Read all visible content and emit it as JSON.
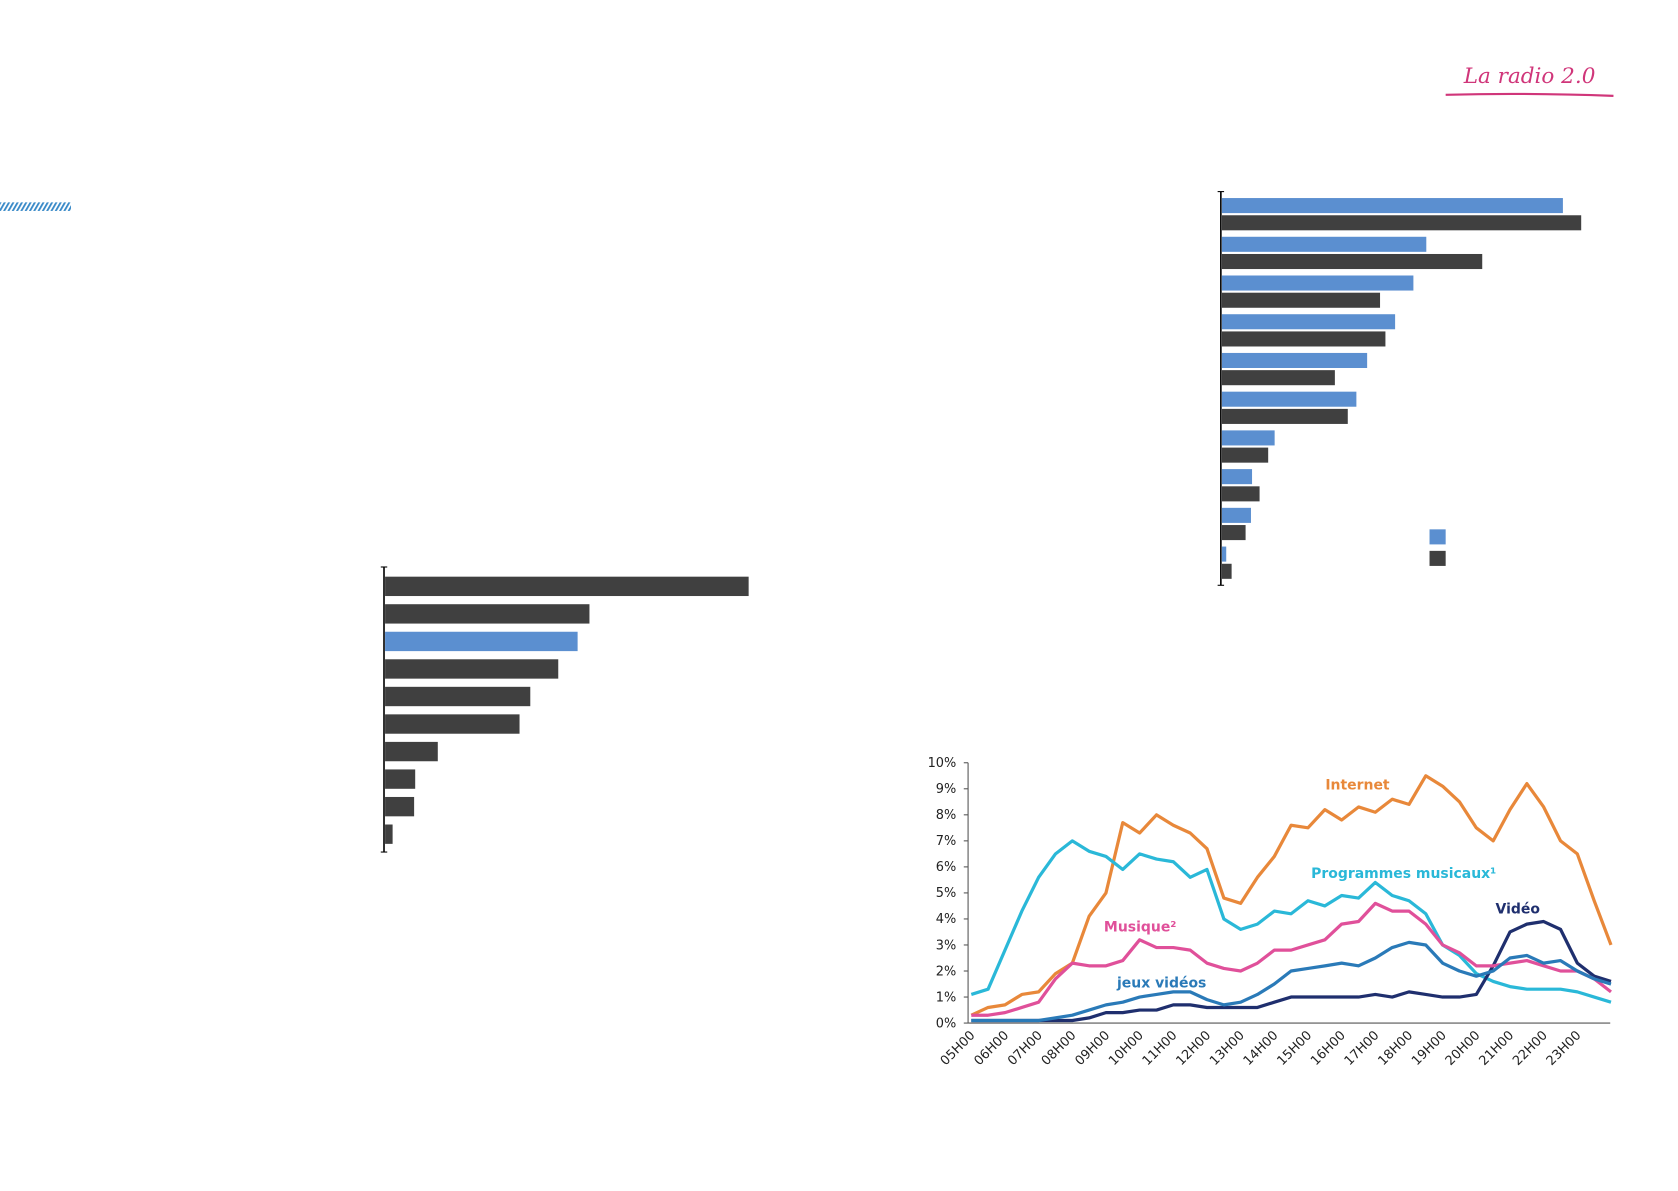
{
  "header": {
    "title": "La radio 2.0"
  },
  "chart_data": [
    {
      "type": "hbar",
      "xlim": [
        0,
        35
      ],
      "values": [
        33.8,
        19,
        17.9,
        16.1,
        13.5,
        12.5,
        4.9,
        2.8,
        2.7,
        0.7
      ],
      "colors": [
        "#404040",
        "#404040",
        "#5b8fd0",
        "#404040",
        "#404040",
        "#404040",
        "#404040",
        "#404040",
        "#404040",
        "#404040"
      ]
    },
    {
      "type": "grouped-hbar",
      "xlim": [
        0,
        35
      ],
      "series": [
        {
          "color": "#5b8fd0",
          "values": [
            31.7,
            19,
            17.8,
            16.1,
            13.5,
            12.5,
            4.9,
            2.8,
            2.7,
            0.4
          ]
        },
        {
          "color": "#404040",
          "values": [
            33.4,
            24.2,
            14.7,
            15.2,
            10.5,
            11.7,
            4.3,
            3.5,
            2.2,
            0.9
          ]
        }
      ],
      "legend": "lower-right"
    },
    {
      "type": "line",
      "ylim": [
        0,
        10
      ],
      "yticks": [
        {
          "value": 0,
          "label": "0%"
        },
        {
          "value": 1,
          "label": "1%"
        },
        {
          "value": 2,
          "label": "2%"
        },
        {
          "value": 3,
          "label": "3%"
        },
        {
          "value": 4,
          "label": "4%"
        },
        {
          "value": 5,
          "label": "5%"
        },
        {
          "value": 6,
          "label": "6%"
        },
        {
          "value": 7,
          "label": "7%"
        },
        {
          "value": 8,
          "label": "8%"
        },
        {
          "value": 9,
          "label": "9%"
        },
        {
          "value": 10,
          "label": "10%"
        }
      ],
      "categories": [
        "05H00",
        null,
        "06H00",
        null,
        "07H00",
        null,
        "08H00",
        null,
        "09H00",
        null,
        "10H00",
        null,
        "11H00",
        null,
        "12H00",
        null,
        "13H00",
        null,
        "14H00",
        null,
        "15H00",
        null,
        "16H00",
        null,
        "17H00",
        null,
        "18H00",
        null,
        "19H00",
        null,
        "20H00",
        null,
        "21H00",
        null,
        "22H00",
        null,
        "23H00",
        null,
        null
      ],
      "series": [
        {
          "name": "Internet",
          "color": "#e8883a",
          "values": [
            0.3,
            0.6,
            0.7,
            1.1,
            1.2,
            1.9,
            2.3,
            4.1,
            5.0,
            7.7,
            7.3,
            8.0,
            7.6,
            7.3,
            6.7,
            4.8,
            4.6,
            5.6,
            6.4,
            7.6,
            7.5,
            8.2,
            7.8,
            8.3,
            8.1,
            8.6,
            8.4,
            9.5,
            9.1,
            8.5,
            7.5,
            7.0,
            8.2,
            9.2,
            8.3,
            7.0,
            6.5,
            4.7,
            3.0
          ]
        },
        {
          "name": "Programmes musicaux¹",
          "color": "#2ab8d8",
          "values": [
            1.1,
            1.3,
            2.8,
            4.3,
            5.6,
            6.5,
            7.0,
            6.6,
            6.4,
            5.9,
            6.5,
            6.3,
            6.2,
            5.6,
            5.9,
            4.0,
            3.6,
            3.8,
            4.3,
            4.2,
            4.7,
            4.5,
            4.9,
            4.8,
            5.4,
            4.9,
            4.7,
            4.2,
            3.0,
            2.6,
            1.9,
            1.6,
            1.4,
            1.3,
            1.3,
            1.3,
            1.2,
            1.0,
            0.8
          ]
        },
        {
          "name": "Vidéo",
          "color": "#1f2f6e",
          "values": [
            0.1,
            0.1,
            0.1,
            0.1,
            0.1,
            0.1,
            0.1,
            0.2,
            0.4,
            0.4,
            0.5,
            0.5,
            0.7,
            0.7,
            0.6,
            0.6,
            0.6,
            0.6,
            0.8,
            1.0,
            1.0,
            1.0,
            1.0,
            1.0,
            1.1,
            1.0,
            1.2,
            1.1,
            1.0,
            1.0,
            1.1,
            2.2,
            3.5,
            3.8,
            3.9,
            3.6,
            2.3,
            1.8,
            1.6
          ]
        },
        {
          "name": "Musique²",
          "color": "#e0509a",
          "values": [
            0.3,
            0.3,
            0.4,
            0.6,
            0.8,
            1.7,
            2.3,
            2.2,
            2.2,
            2.4,
            3.2,
            2.9,
            2.9,
            2.8,
            2.3,
            2.1,
            2.0,
            2.3,
            2.8,
            2.8,
            3.0,
            3.2,
            3.8,
            3.9,
            4.6,
            4.3,
            4.3,
            3.8,
            3.0,
            2.7,
            2.2,
            2.2,
            2.3,
            2.4,
            2.2,
            2.0,
            2.0,
            1.7,
            1.2
          ]
        },
        {
          "name": "jeux vidéos",
          "color": "#2a7ab8",
          "values": [
            0.1,
            0.1,
            0.1,
            0.1,
            0.1,
            0.2,
            0.3,
            0.5,
            0.7,
            0.8,
            1.0,
            1.1,
            1.2,
            1.2,
            0.9,
            0.7,
            0.8,
            1.1,
            1.5,
            2.0,
            2.1,
            2.2,
            2.3,
            2.2,
            2.5,
            2.9,
            3.1,
            3.0,
            2.3,
            2.0,
            1.8,
            2.0,
            2.5,
            2.6,
            2.3,
            2.4,
            2.0,
            1.7,
            1.5
          ]
        }
      ]
    }
  ]
}
